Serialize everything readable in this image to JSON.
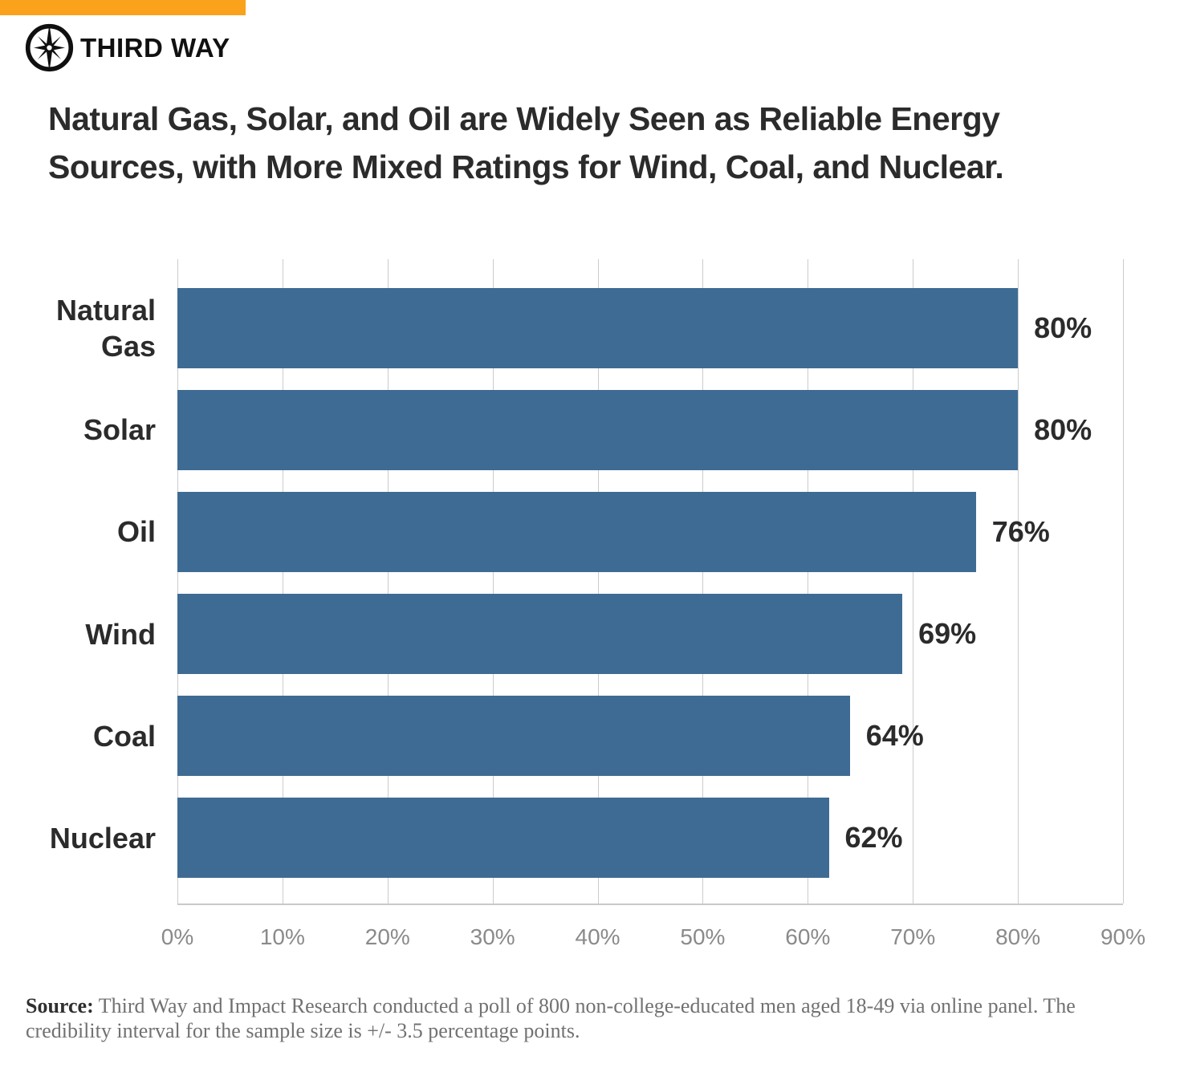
{
  "header": {
    "banner_color": "#FAA21B",
    "logo": {
      "icon": "compass-star",
      "wordmark": "THIRD WAY"
    }
  },
  "title_lines": [
    "Natural Gas, Solar, and Oil are Widely Seen as Reliable Energy",
    "Sources, with More Mixed Ratings for Wind, Coal, and Nuclear."
  ],
  "chart_data": {
    "type": "bar",
    "orientation": "horizontal",
    "categories": [
      "Natural Gas",
      "Solar",
      "Oil",
      "Wind",
      "Coal",
      "Nuclear"
    ],
    "values": [
      80,
      80,
      76,
      69,
      64,
      62
    ],
    "value_labels": [
      "80%",
      "80%",
      "76%",
      "69%",
      "64%",
      "62%"
    ],
    "xlim": [
      0,
      90
    ],
    "x_ticks": [
      "0%",
      "10%",
      "20%",
      "30%",
      "40%",
      "50%",
      "60%",
      "70%",
      "80%",
      "90%"
    ],
    "grid": true,
    "legend": "none",
    "bar_color": "#3E6B94",
    "gridline_color": "#cccccc",
    "axis_line_color": "#c9c9c9",
    "label_color": "#2b2b2b",
    "tick_label_color": "#8a8a8a"
  },
  "source": {
    "label": "Source:",
    "text": " Third Way and Impact Research conducted a poll of 800 non-college-educated men aged 18-49 via online panel. The credibility interval for the sample size is +/- 3.5 percentage points."
  }
}
